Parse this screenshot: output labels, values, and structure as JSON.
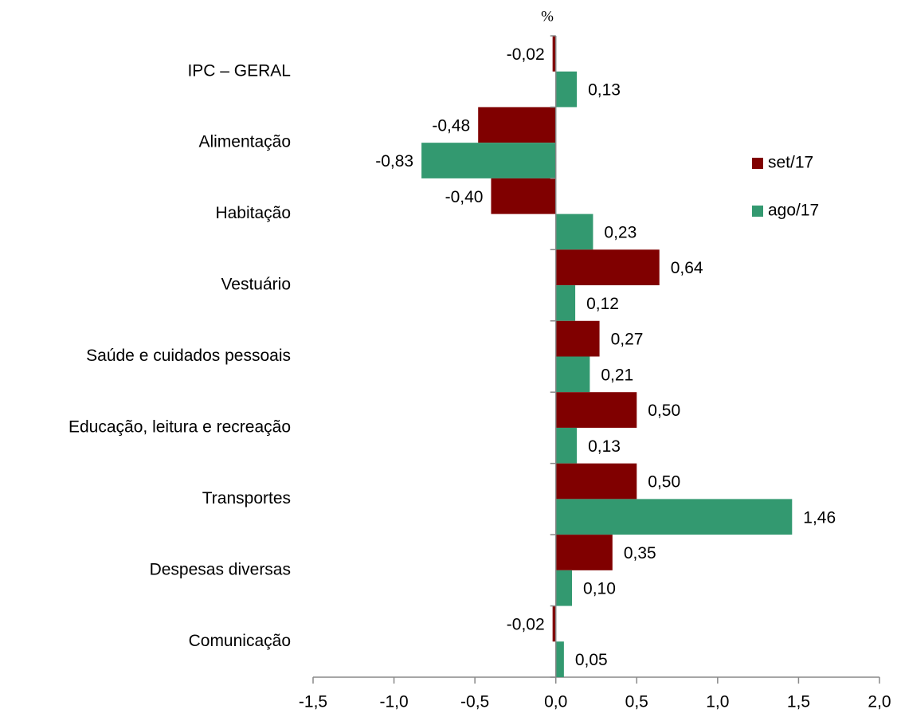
{
  "chart_data": {
    "type": "bar",
    "orientation": "horizontal",
    "y_label": "%",
    "categories": [
      "IPC – GERAL",
      "Alimentação",
      "Habitação",
      "Vestuário",
      "Saúde e cuidados pessoais",
      "Educação, leitura e recreação",
      "Transportes",
      "Despesas diversas",
      "Comunicação"
    ],
    "series": [
      {
        "name": "set/17",
        "color": "#800000",
        "values": [
          -0.02,
          -0.48,
          -0.4,
          0.64,
          0.27,
          0.5,
          0.5,
          0.35,
          -0.02
        ],
        "value_labels": [
          "-0,02",
          "-0,48",
          "-0,40",
          "0,64",
          "0,27",
          "0,50",
          "0,50",
          "0,35",
          "-0,02"
        ]
      },
      {
        "name": "ago/17",
        "color": "#339970",
        "values": [
          0.13,
          -0.83,
          0.23,
          0.12,
          0.21,
          0.13,
          1.46,
          0.1,
          0.05
        ],
        "value_labels": [
          "0,13",
          "-0,83",
          "0,23",
          "0,12",
          "0,21",
          "0,13",
          "1,46",
          "0,10",
          "0,05"
        ]
      }
    ],
    "xlim": [
      -1.5,
      2.0
    ],
    "xticks": [
      {
        "value": -1.5,
        "label": "-1,5"
      },
      {
        "value": -1.0,
        "label": "-1,0"
      },
      {
        "value": -0.5,
        "label": "-0,5"
      },
      {
        "value": 0.0,
        "label": "0,0"
      },
      {
        "value": 0.5,
        "label": "0,5"
      },
      {
        "value": 1.0,
        "label": "1,0"
      },
      {
        "value": 1.5,
        "label": "1,5"
      },
      {
        "value": 2.0,
        "label": "2,0"
      }
    ],
    "grid": false,
    "legend": "right"
  }
}
